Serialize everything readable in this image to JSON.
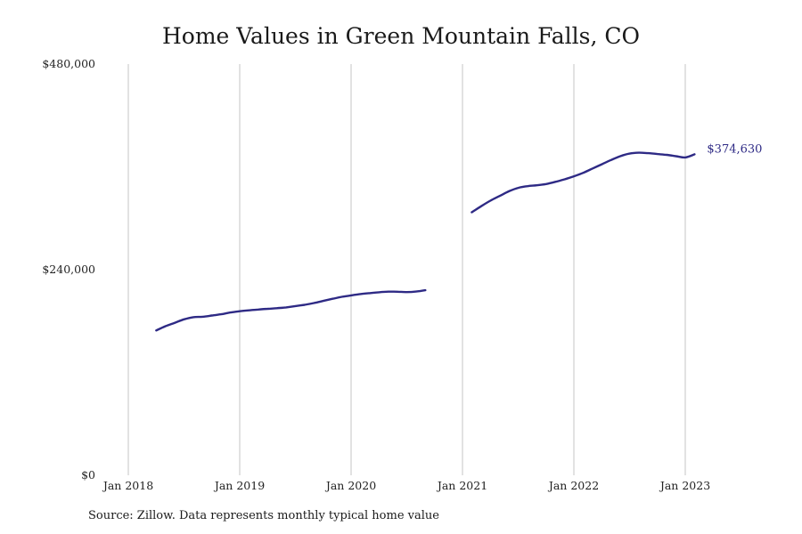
{
  "chart_data": {
    "type": "line",
    "title": "Home Values in Green Mountain Falls, CO",
    "source": "Source: Zillow. Data represents monthly typical home value",
    "ylim": [
      0,
      480000
    ],
    "y_ticks": [
      {
        "value": 0,
        "label": "$0"
      },
      {
        "value": 240000,
        "label": "$240,000"
      },
      {
        "value": 480000,
        "label": "$480,000"
      }
    ],
    "x_ticks": [
      {
        "value": "2018-01",
        "label": "Jan 2018"
      },
      {
        "value": "2019-01",
        "label": "Jan 2019"
      },
      {
        "value": "2020-01",
        "label": "Jan 2020"
      },
      {
        "value": "2021-01",
        "label": "Jan 2021"
      },
      {
        "value": "2022-01",
        "label": "Jan 2022"
      },
      {
        "value": "2023-01",
        "label": "Jan 2023"
      }
    ],
    "grid": "vertical",
    "color": "#2e2a85",
    "end_label": "$374,630",
    "segments": [
      [
        {
          "x": "2018-04",
          "y": 169000
        },
        {
          "x": "2018-05",
          "y": 174000
        },
        {
          "x": "2018-06",
          "y": 178000
        },
        {
          "x": "2018-07",
          "y": 182000
        },
        {
          "x": "2018-08",
          "y": 184500
        },
        {
          "x": "2018-09",
          "y": 185000
        },
        {
          "x": "2018-10",
          "y": 186500
        },
        {
          "x": "2018-11",
          "y": 188000
        },
        {
          "x": "2018-12",
          "y": 190000
        },
        {
          "x": "2019-01",
          "y": 191500
        },
        {
          "x": "2019-02",
          "y": 192500
        },
        {
          "x": "2019-03",
          "y": 193500
        },
        {
          "x": "2019-04",
          "y": 194300
        },
        {
          "x": "2019-05",
          "y": 195000
        },
        {
          "x": "2019-06",
          "y": 196000
        },
        {
          "x": "2019-07",
          "y": 197500
        },
        {
          "x": "2019-08",
          "y": 199000
        },
        {
          "x": "2019-09",
          "y": 201000
        },
        {
          "x": "2019-10",
          "y": 203500
        },
        {
          "x": "2019-11",
          "y": 206000
        },
        {
          "x": "2019-12",
          "y": 208300
        },
        {
          "x": "2020-01",
          "y": 210000
        },
        {
          "x": "2020-02",
          "y": 211500
        },
        {
          "x": "2020-03",
          "y": 212600
        },
        {
          "x": "2020-04",
          "y": 213600
        },
        {
          "x": "2020-05",
          "y": 214300
        },
        {
          "x": "2020-06",
          "y": 214200
        },
        {
          "x": "2020-07",
          "y": 213800
        },
        {
          "x": "2020-08",
          "y": 214400
        },
        {
          "x": "2020-09",
          "y": 216000
        }
      ],
      [
        {
          "x": "2021-02",
          "y": 307000
        },
        {
          "x": "2021-03",
          "y": 314000
        },
        {
          "x": "2021-04",
          "y": 320500
        },
        {
          "x": "2021-05",
          "y": 326000
        },
        {
          "x": "2021-06",
          "y": 331500
        },
        {
          "x": "2021-07",
          "y": 335500
        },
        {
          "x": "2021-08",
          "y": 337500
        },
        {
          "x": "2021-09",
          "y": 338500
        },
        {
          "x": "2021-10",
          "y": 340000
        },
        {
          "x": "2021-11",
          "y": 342500
        },
        {
          "x": "2021-12",
          "y": 345500
        },
        {
          "x": "2022-01",
          "y": 349000
        },
        {
          "x": "2022-02",
          "y": 353000
        },
        {
          "x": "2022-03",
          "y": 358000
        },
        {
          "x": "2022-04",
          "y": 363000
        },
        {
          "x": "2022-05",
          "y": 368000
        },
        {
          "x": "2022-06",
          "y": 372500
        },
        {
          "x": "2022-07",
          "y": 375500
        },
        {
          "x": "2022-08",
          "y": 376500
        },
        {
          "x": "2022-09",
          "y": 376000
        },
        {
          "x": "2022-10",
          "y": 375000
        },
        {
          "x": "2022-11",
          "y": 374000
        },
        {
          "x": "2022-12",
          "y": 372500
        },
        {
          "x": "2023-01",
          "y": 371000
        },
        {
          "x": "2023-02",
          "y": 374630
        }
      ]
    ]
  }
}
